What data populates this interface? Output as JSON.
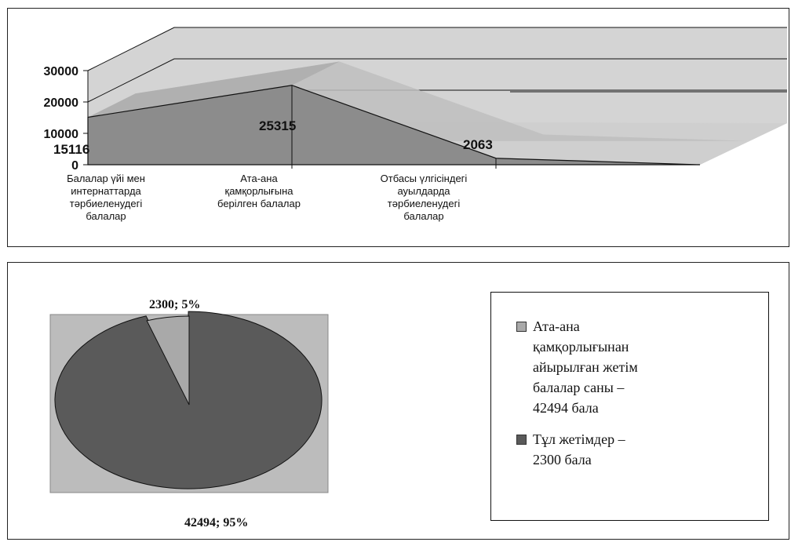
{
  "colors": {
    "series_front": "#8c8c8c",
    "series_back": "#bebebe",
    "plot_bg": "#c8c8c8",
    "wall": "#d4d4d4",
    "pie_bg": "#bcbcbc",
    "slice_large": "#5a5a5a",
    "slice_small": "#a9a9a9",
    "line": "#111111"
  },
  "chart_data": [
    {
      "type": "area",
      "view": "3d",
      "categories": [
        "Балалар үйі мен интернаттарда тәрбиеленудегі балалар",
        "Ата-ана қамқорлығына берілген балалар",
        "Отбасы үлгісіндегі ауылдарда тәрбиеленудегі балалар"
      ],
      "category_lines": [
        [
          "Балалар үйі мен",
          "интернаттарда",
          "тәрбиеленудегі",
          "балалар"
        ],
        [
          "Ата-ана",
          "қамқорлығына",
          "берілген балалар"
        ],
        [
          "Отбасы үлгісіндегі",
          "ауылдарда",
          "тәрбиеленудегі",
          "балалар"
        ]
      ],
      "values": [
        15116,
        25315,
        2063
      ],
      "data_labels": [
        "15116",
        "25315",
        "2063"
      ],
      "ylim": [
        0,
        30000
      ],
      "yticks": [
        "0",
        "10000",
        "20000",
        "30000"
      ],
      "title": "",
      "xlabel": "",
      "ylabel": "",
      "legend": "none"
    },
    {
      "type": "pie",
      "slices": [
        {
          "label": "Ата-ана қамқорлығынан айырылған жетім балалар саны – 42494 бала",
          "value": 42494,
          "percent": 95,
          "data_label": "42494; 95%"
        },
        {
          "label": "Тұл жетімдер – 2300 бала",
          "value": 2300,
          "percent": 5,
          "data_label": "2300; 5%"
        }
      ],
      "legend": "right"
    }
  ],
  "legend": {
    "items": [
      [
        "Ата-ана",
        "қамқорлығынан",
        "айырылған жетім",
        "балалар саны –",
        "42494 бала"
      ],
      [
        "Тұл жетімдер –",
        "2300 бала"
      ]
    ]
  }
}
